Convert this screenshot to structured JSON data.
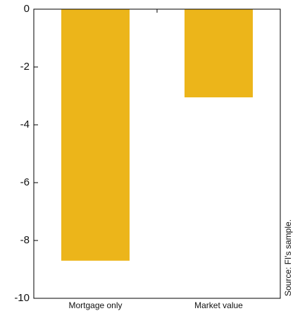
{
  "chart_data": {
    "type": "bar",
    "categories": [
      "Mortgage only",
      "Market value"
    ],
    "values": [
      -8.7,
      -3.05
    ],
    "color": "#ecb51a",
    "ylim": [
      -10,
      0
    ],
    "yticks": [
      0,
      -2,
      -4,
      -6,
      -8,
      -10
    ],
    "source": "Source: FI's sample."
  }
}
